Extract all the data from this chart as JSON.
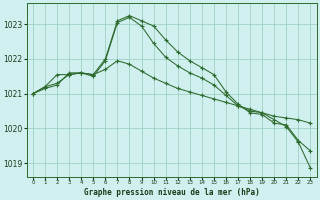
{
  "background_color": "#cff0ee",
  "grid_color": "#99ccbb",
  "line_color": "#2d6a2d",
  "title": "Graphe pression niveau de la mer (hPa)",
  "xlim": [
    -0.5,
    23.5
  ],
  "ylim": [
    1018.6,
    1023.6
  ],
  "yticks": [
    1019,
    1020,
    1021,
    1022,
    1023
  ],
  "xticks": [
    0,
    1,
    2,
    3,
    4,
    5,
    6,
    7,
    8,
    9,
    10,
    11,
    12,
    13,
    14,
    15,
    16,
    17,
    18,
    19,
    20,
    21,
    22,
    23
  ],
  "series1_x": [
    0,
    1,
    2,
    3,
    4,
    5,
    6,
    7,
    8,
    9,
    10,
    11,
    12,
    13,
    14,
    15,
    16,
    17,
    18,
    19,
    20,
    21,
    22,
    23
  ],
  "series1": [
    1021.0,
    1021.15,
    1021.25,
    1021.6,
    1021.6,
    1021.55,
    1022.0,
    1023.1,
    1023.25,
    1023.1,
    1022.95,
    1022.55,
    1022.2,
    1021.95,
    1021.75,
    1021.55,
    1021.05,
    1020.7,
    1020.45,
    1020.4,
    1020.15,
    1020.1,
    1019.65,
    1019.35
  ],
  "series2_x": [
    0,
    1,
    2,
    3,
    4,
    5,
    6,
    7,
    8,
    9,
    10,
    11,
    12,
    13,
    14,
    15,
    16,
    17,
    18,
    19,
    20,
    21,
    22,
    23
  ],
  "series2": [
    1021.0,
    1021.2,
    1021.3,
    1021.55,
    1021.6,
    1021.5,
    1021.95,
    1023.05,
    1023.2,
    1022.95,
    1022.45,
    1022.05,
    1021.8,
    1021.6,
    1021.45,
    1021.25,
    1020.95,
    1020.65,
    1020.5,
    1020.45,
    1020.25,
    1020.05,
    1019.6,
    1018.85
  ],
  "series3_x": [
    0,
    1,
    2,
    3,
    4,
    5,
    6,
    7,
    8,
    9,
    10,
    11,
    12,
    13,
    14,
    15,
    16,
    17,
    18,
    19,
    20,
    21,
    22,
    23
  ],
  "series3": [
    1021.0,
    1021.2,
    1021.55,
    1021.55,
    1021.6,
    1021.55,
    1021.7,
    1021.95,
    1021.85,
    1021.65,
    1021.45,
    1021.3,
    1021.15,
    1021.05,
    1020.95,
    1020.85,
    1020.75,
    1020.65,
    1020.55,
    1020.45,
    1020.35,
    1020.3,
    1020.25,
    1020.15
  ]
}
